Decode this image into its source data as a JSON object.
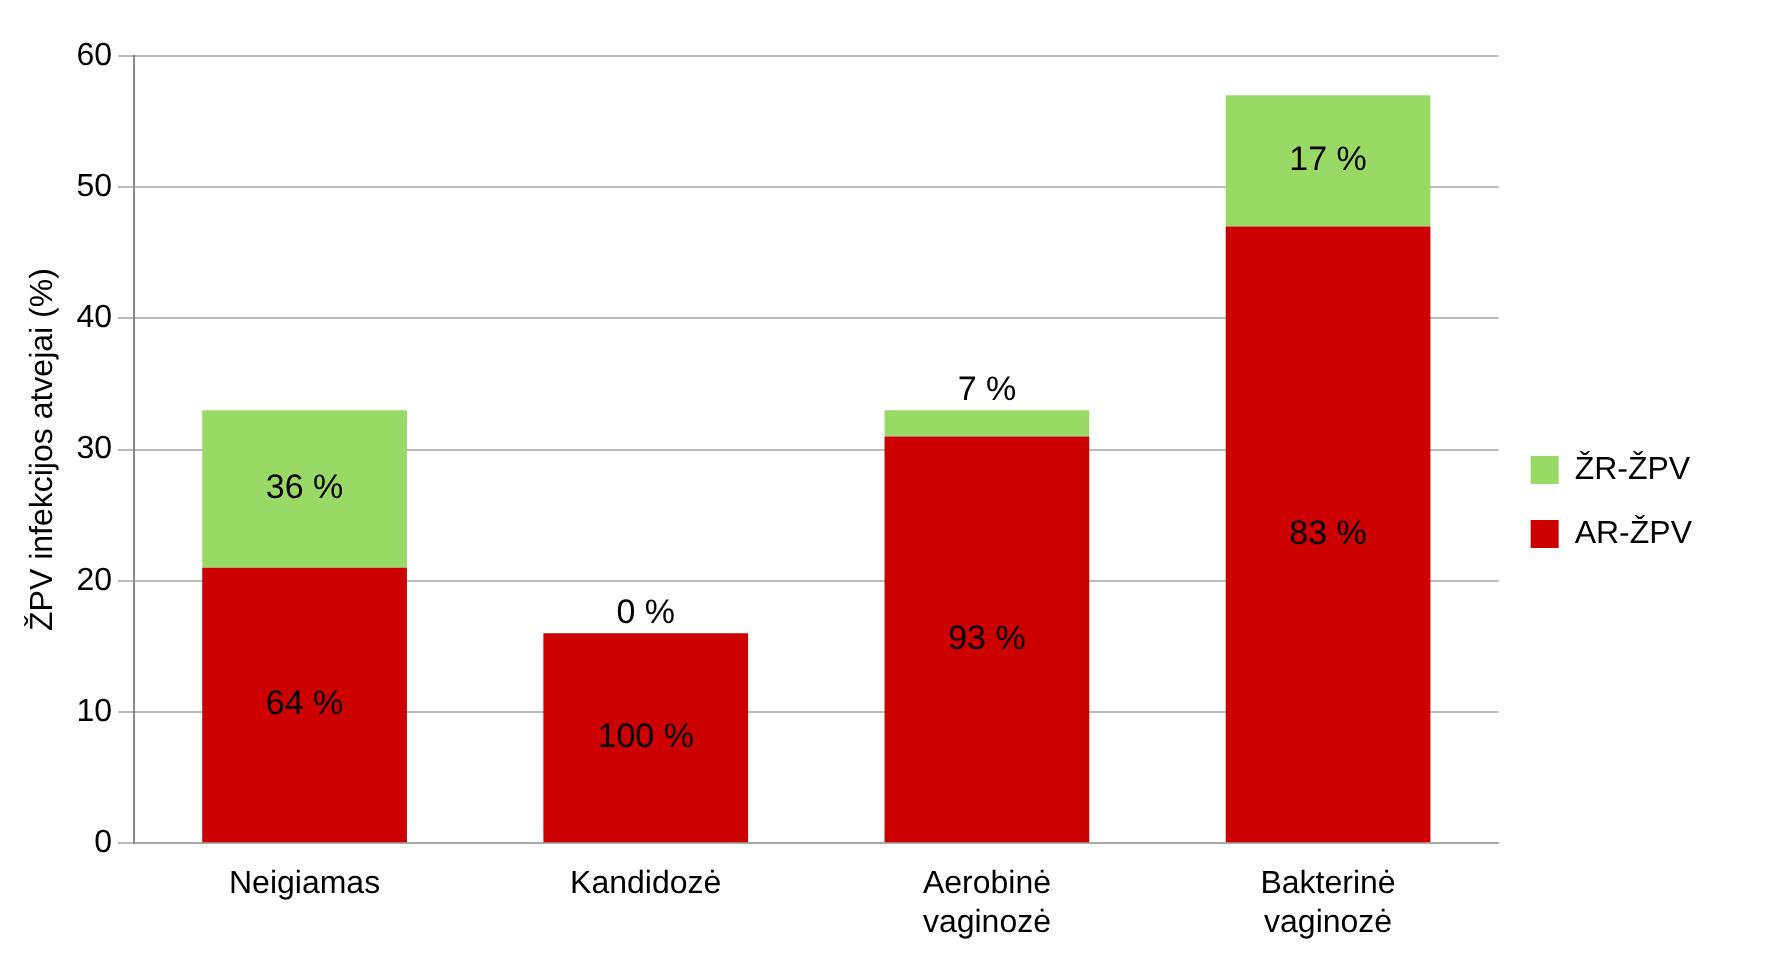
{
  "chart_data": {
    "type": "bar",
    "stacked": true,
    "ylabel": "ŽPV infekcijos atvejai (%)",
    "categories": [
      "Neigiamas",
      "Kandidozė",
      "Aerobinė vaginozė",
      "Bakterinė vaginozė"
    ],
    "series": [
      {
        "name": "AR-ŽPV",
        "color": "#cc0000",
        "values": [
          21,
          16,
          31,
          47
        ]
      },
      {
        "name": "ŽR-ŽPV",
        "color": "#99d966",
        "values": [
          12,
          0,
          2,
          10
        ]
      }
    ],
    "annotations": [
      "64 %",
      "36 %",
      "100 %",
      "0 %",
      "93 %",
      "7 %",
      "83 %",
      "17 %"
    ],
    "ylim": [
      0,
      60
    ],
    "yticks": [
      0,
      10,
      20,
      30,
      40,
      50,
      60
    ],
    "grid": "y",
    "legend": "right"
  }
}
